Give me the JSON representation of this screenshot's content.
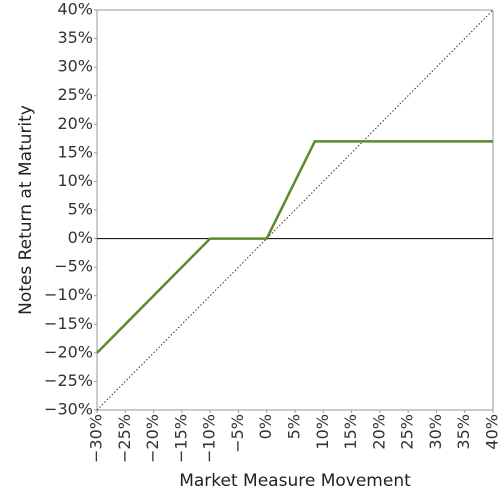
{
  "chart_data": {
    "type": "line",
    "x_label": "Market Measure Movement",
    "y_label": "Notes Return at Maturity",
    "x": [
      -30,
      -10,
      0,
      8.5,
      40
    ],
    "values": [
      -20,
      0,
      0,
      17,
      17
    ],
    "color": "#5b8c2a",
    "xlim": [
      -30,
      40
    ],
    "ylim": [
      -30,
      40
    ],
    "xticks": [
      {
        "value": -30,
        "label": "−30%"
      },
      {
        "value": -25,
        "label": "−25%"
      },
      {
        "value": -20,
        "label": "−20%"
      },
      {
        "value": -15,
        "label": "−15%"
      },
      {
        "value": -10,
        "label": "−10%"
      },
      {
        "value": -5,
        "label": "−5%"
      },
      {
        "value": 0,
        "label": "0%"
      },
      {
        "value": 5,
        "label": "5%"
      },
      {
        "value": 10,
        "label": "10%"
      },
      {
        "value": 15,
        "label": "15%"
      },
      {
        "value": 20,
        "label": "20%"
      },
      {
        "value": 25,
        "label": "25%"
      },
      {
        "value": 30,
        "label": "30%"
      },
      {
        "value": 35,
        "label": "35%"
      },
      {
        "value": 40,
        "label": "40%"
      }
    ],
    "yticks": [
      {
        "value": -30,
        "label": "−30%"
      },
      {
        "value": -25,
        "label": "−25%"
      },
      {
        "value": -20,
        "label": "−20%"
      },
      {
        "value": -15,
        "label": "−15%"
      },
      {
        "value": -10,
        "label": "−10%"
      },
      {
        "value": -5,
        "label": "−5%"
      },
      {
        "value": 0,
        "label": "0%"
      },
      {
        "value": 5,
        "label": "5%"
      },
      {
        "value": 10,
        "label": "10%"
      },
      {
        "value": 15,
        "label": "15%"
      },
      {
        "value": 20,
        "label": "20%"
      },
      {
        "value": 25,
        "label": "25%"
      },
      {
        "value": 30,
        "label": "30%"
      },
      {
        "value": 35,
        "label": "35%"
      },
      {
        "value": 40,
        "label": "40%"
      }
    ],
    "grid": false,
    "zero_line": true,
    "diagonal": true
  }
}
